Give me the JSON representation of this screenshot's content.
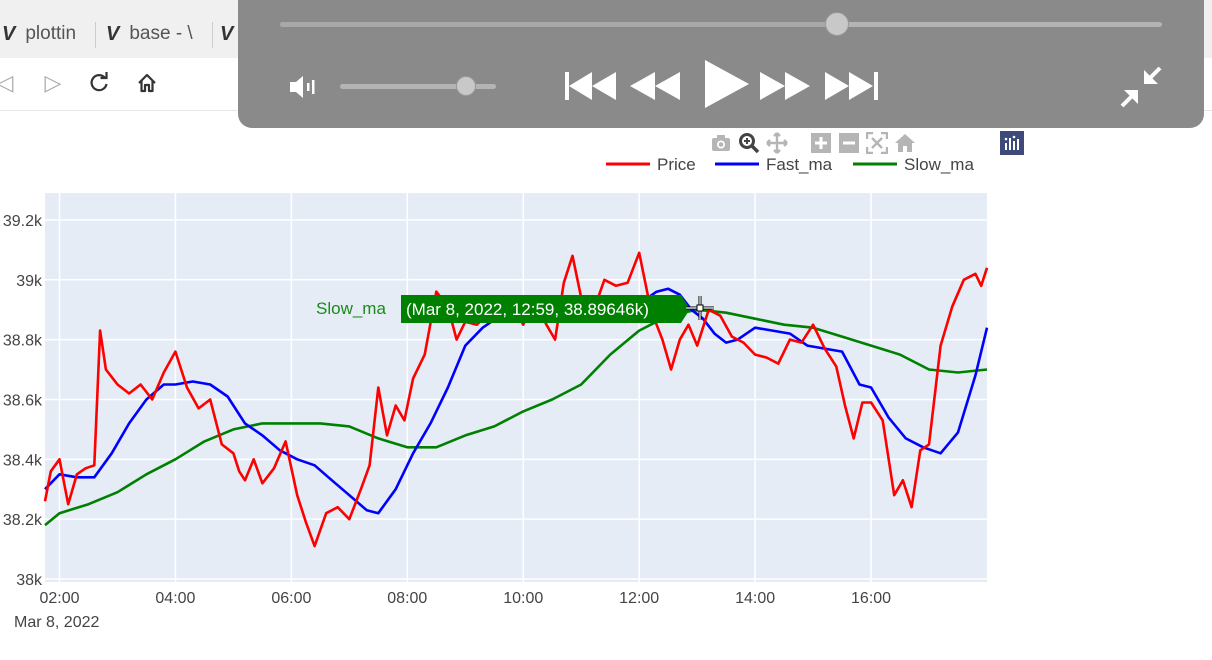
{
  "browser": {
    "tabs": [
      {
        "icon": "V",
        "label": "plottin"
      },
      {
        "icon": "V",
        "label": "base - \\"
      },
      {
        "icon": "V",
        "label": ""
      }
    ]
  },
  "player": {
    "seek_progress": 0.63,
    "volume_level": 0.8,
    "controls": [
      "mute-toggle",
      "skip-previous",
      "rewind",
      "play",
      "fast-forward",
      "skip-next",
      "exit-fullscreen"
    ]
  },
  "modebar": {
    "icons": [
      "camera-icon",
      "zoom-icon",
      "pan-icon",
      "zoom-in-icon",
      "zoom-out-icon",
      "autoscale-icon",
      "reset-axes-icon",
      "plotly-logo-icon"
    ]
  },
  "hover": {
    "series_label": "Slow_ma",
    "text": "(Mar 8, 2022, 12:59, 38.89646k)",
    "color": "#008000"
  },
  "chart_data": {
    "type": "line",
    "x_tick_labels": [
      "02:00",
      "04:00",
      "06:00",
      "08:00",
      "10:00",
      "12:00",
      "14:00",
      "16:00"
    ],
    "x_sublabel": "Mar 8, 2022",
    "y_tick_labels": [
      "38k",
      "38.2k",
      "38.4k",
      "38.6k",
      "38.8k",
      "39k",
      "39.2k"
    ],
    "x_range_hours": [
      1.75,
      18.0
    ],
    "ylim": [
      37990,
      39290
    ],
    "grid": true,
    "legend_position": "top-right",
    "background": "#e5ecf6",
    "series": [
      {
        "name": "Price",
        "color": "#ff0000",
        "x": [
          1.75,
          1.85,
          2.0,
          2.15,
          2.3,
          2.45,
          2.6,
          2.7,
          2.8,
          3.0,
          3.2,
          3.4,
          3.6,
          3.8,
          4.0,
          4.2,
          4.4,
          4.6,
          4.8,
          5.0,
          5.1,
          5.2,
          5.35,
          5.5,
          5.7,
          5.9,
          6.1,
          6.25,
          6.4,
          6.6,
          6.8,
          7.0,
          7.2,
          7.35,
          7.5,
          7.65,
          7.8,
          7.95,
          8.1,
          8.3,
          8.5,
          8.7,
          8.85,
          9.0,
          9.2,
          9.4,
          9.6,
          9.8,
          10.0,
          10.2,
          10.4,
          10.55,
          10.7,
          10.85,
          11.0,
          11.2,
          11.4,
          11.6,
          11.8,
          12.0,
          12.2,
          12.4,
          12.55,
          12.7,
          12.85,
          13.0,
          13.2,
          13.4,
          13.6,
          13.8,
          14.0,
          14.2,
          14.4,
          14.6,
          14.8,
          15.0,
          15.2,
          15.4,
          15.55,
          15.7,
          15.85,
          16.0,
          16.2,
          16.4,
          16.55,
          16.7,
          16.85,
          17.0,
          17.2,
          17.4,
          17.6,
          17.8,
          17.9,
          18.0
        ],
        "y": [
          38260,
          38360,
          38400,
          38250,
          38350,
          38370,
          38380,
          38830,
          38700,
          38650,
          38620,
          38650,
          38600,
          38690,
          38760,
          38640,
          38570,
          38600,
          38450,
          38420,
          38360,
          38330,
          38400,
          38320,
          38370,
          38460,
          38280,
          38190,
          38110,
          38220,
          38240,
          38200,
          38300,
          38380,
          38640,
          38480,
          38580,
          38530,
          38670,
          38750,
          38960,
          38910,
          38800,
          38860,
          38850,
          38890,
          38940,
          38920,
          38850,
          38930,
          38850,
          38800,
          38990,
          39080,
          38940,
          38890,
          39000,
          38980,
          38990,
          39090,
          38900,
          38800,
          38700,
          38800,
          38850,
          38780,
          38900,
          38880,
          38810,
          38790,
          38750,
          38740,
          38720,
          38800,
          38790,
          38850,
          38770,
          38710,
          38580,
          38470,
          38590,
          38590,
          38530,
          38280,
          38330,
          38240,
          38430,
          38450,
          38780,
          38910,
          39000,
          39020,
          38980,
          39040
        ]
      },
      {
        "name": "Fast_ma",
        "color": "#0000ff",
        "x": [
          1.75,
          2.0,
          2.3,
          2.6,
          2.9,
          3.2,
          3.5,
          3.8,
          4.0,
          4.3,
          4.6,
          4.9,
          5.2,
          5.5,
          5.8,
          6.1,
          6.4,
          6.7,
          7.0,
          7.3,
          7.5,
          7.8,
          8.1,
          8.4,
          8.7,
          9.0,
          9.3,
          9.6,
          9.9,
          10.2,
          10.5,
          10.8,
          11.1,
          11.4,
          11.7,
          12.0,
          12.3,
          12.5,
          12.7,
          12.9,
          13.1,
          13.3,
          13.5,
          13.7,
          14.0,
          14.3,
          14.6,
          14.9,
          15.2,
          15.5,
          15.8,
          16.0,
          16.3,
          16.6,
          16.9,
          17.2,
          17.5,
          17.8,
          18.0
        ],
        "y": [
          38300,
          38350,
          38340,
          38340,
          38420,
          38520,
          38600,
          38650,
          38650,
          38660,
          38650,
          38610,
          38520,
          38480,
          38430,
          38400,
          38380,
          38330,
          38280,
          38230,
          38220,
          38300,
          38420,
          38520,
          38640,
          38780,
          38840,
          38880,
          38900,
          38890,
          38900,
          38900,
          38880,
          38880,
          38890,
          38920,
          38960,
          38970,
          38950,
          38900,
          38870,
          38820,
          38790,
          38800,
          38840,
          38830,
          38820,
          38780,
          38770,
          38760,
          38650,
          38640,
          38540,
          38470,
          38440,
          38420,
          38490,
          38680,
          38840
        ]
      },
      {
        "name": "Slow_ma",
        "color": "#008000",
        "x": [
          1.75,
          2.0,
          2.5,
          3.0,
          3.5,
          4.0,
          4.5,
          5.0,
          5.5,
          6.0,
          6.5,
          7.0,
          7.5,
          8.0,
          8.5,
          9.0,
          9.5,
          10.0,
          10.5,
          11.0,
          11.5,
          12.0,
          12.5,
          13.0,
          13.5,
          14.0,
          14.5,
          15.0,
          15.5,
          16.0,
          16.5,
          17.0,
          17.5,
          18.0
        ],
        "y": [
          38180,
          38220,
          38250,
          38290,
          38350,
          38400,
          38460,
          38500,
          38520,
          38520,
          38520,
          38510,
          38470,
          38440,
          38440,
          38480,
          38510,
          38560,
          38600,
          38650,
          38750,
          38830,
          38880,
          38900,
          38890,
          38870,
          38850,
          38840,
          38810,
          38780,
          38750,
          38700,
          38690,
          38700
        ]
      }
    ]
  }
}
